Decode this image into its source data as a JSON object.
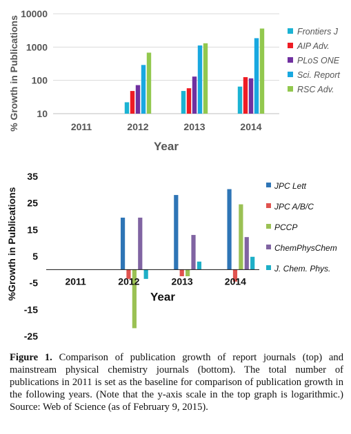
{
  "chart_data": [
    {
      "type": "bar",
      "scale": "log",
      "categories": [
        "2011",
        "2012",
        "2013",
        "2014"
      ],
      "xlabel": "Year",
      "ylabel": "% Growth in Publications",
      "ylim": [
        10,
        10000
      ],
      "yticks": [
        "10",
        "100",
        "1000",
        "10000"
      ],
      "grid": true,
      "legend_position": "right",
      "series": [
        {
          "name": "Frontiers J",
          "color": "#1BB3D3",
          "values": [
            null,
            22,
            48,
            65
          ]
        },
        {
          "name": "AIP Adv.",
          "color": "#EE1C24",
          "values": [
            null,
            48,
            58,
            125
          ]
        },
        {
          "name": "PLoS ONE",
          "color": "#7030A0",
          "values": [
            null,
            72,
            130,
            115
          ]
        },
        {
          "name": "Sci. Report",
          "color": "#19A8E0",
          "values": [
            null,
            290,
            1120,
            1850
          ]
        },
        {
          "name": "RSC Adv.",
          "color": "#92C84E",
          "values": [
            null,
            680,
            1300,
            3600
          ]
        }
      ]
    },
    {
      "type": "bar",
      "categories": [
        "2011",
        "2012",
        "2013",
        "2014"
      ],
      "xlabel": "Year",
      "ylabel": "%Growth in Publications",
      "ylim": [
        -25,
        35
      ],
      "yticks": [
        "35",
        "25",
        "15",
        "5",
        "-5",
        "-15",
        "-25"
      ],
      "grid": false,
      "legend_position": "right",
      "series": [
        {
          "name": "JPC Lett",
          "color": "#2E75B6",
          "values": [
            null,
            19.5,
            28,
            30.2
          ]
        },
        {
          "name": "JPC A/B/C",
          "color": "#E0534F",
          "values": [
            null,
            -3.5,
            -2.5,
            -4.5
          ]
        },
        {
          "name": "PCCP",
          "color": "#9BC154",
          "values": [
            null,
            -22,
            -2.5,
            24.5
          ]
        },
        {
          "name": "ChemPhysChem",
          "color": "#8064A2",
          "values": [
            null,
            19.5,
            13,
            12.2
          ]
        },
        {
          "name": "J. Chem. Phys.",
          "color": "#1EAFC7",
          "values": [
            null,
            -3.5,
            3,
            4.8
          ]
        }
      ]
    }
  ],
  "caption": {
    "label": "Figure 1.",
    "text": " Comparison of publication growth of report journals (top) and mainstream physical chemistry journals (bottom). The total number of publications in 2011 is set as the baseline for comparison of publication growth in the following years. (Note that the y-axis scale in the top graph is logarithmic.) Source: Web of Science (as of February 9, 2015)."
  }
}
